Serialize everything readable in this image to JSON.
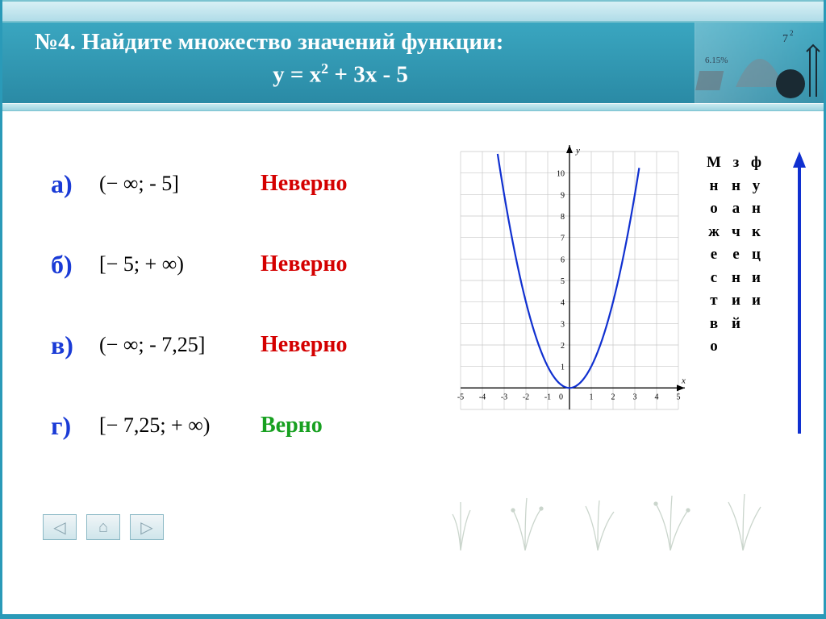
{
  "title": "№4. Найдите множество значений функции:",
  "equation_pre": "y = x",
  "equation_exp": "2",
  "equation_post": " + 3x - 5",
  "options": [
    {
      "label": "а)",
      "expr": "(− ∞; - 5]",
      "feedback": "Неверно",
      "correct": false
    },
    {
      "label": "б)",
      "expr": "[− 5; + ∞)",
      "feedback": "Неверно",
      "correct": false
    },
    {
      "label": "в)",
      "expr": "(− ∞;  - 7,25]",
      "feedback": "Неверно",
      "correct": false
    },
    {
      "label": "г)",
      "expr": "[− 7,25; + ∞)",
      "feedback": "Верно",
      "correct": true
    }
  ],
  "side_cols": [
    [
      "М",
      "н",
      "о",
      "ж",
      "е",
      "с",
      "т",
      "в",
      "о"
    ],
    [
      "з",
      "н",
      "а",
      "ч",
      "е",
      "н",
      "и",
      "й"
    ],
    [
      "ф",
      "у",
      "н",
      "к",
      "ц",
      "и",
      "и"
    ]
  ],
  "graph": {
    "xlim": [
      -5,
      5
    ],
    "ylim": [
      -1,
      11
    ],
    "curve_color": "#1030d0",
    "grid_color": "#c8c8c8",
    "axis_color": "#000000"
  },
  "nav": {
    "prev": "◁",
    "home": "⌂",
    "next": "▷"
  }
}
